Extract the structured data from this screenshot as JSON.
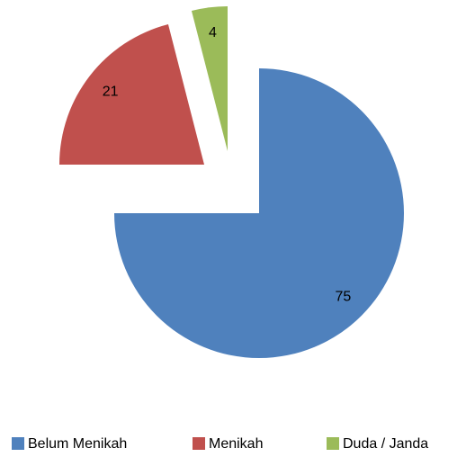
{
  "chart_data": {
    "type": "pie",
    "categories": [
      "Belum Menikah",
      "Menikah",
      "Duda / Janda"
    ],
    "values": [
      75,
      21,
      4
    ],
    "colors": [
      "#4f81bd",
      "#c0504d",
      "#9bbb59"
    ],
    "legend": "bottom"
  }
}
